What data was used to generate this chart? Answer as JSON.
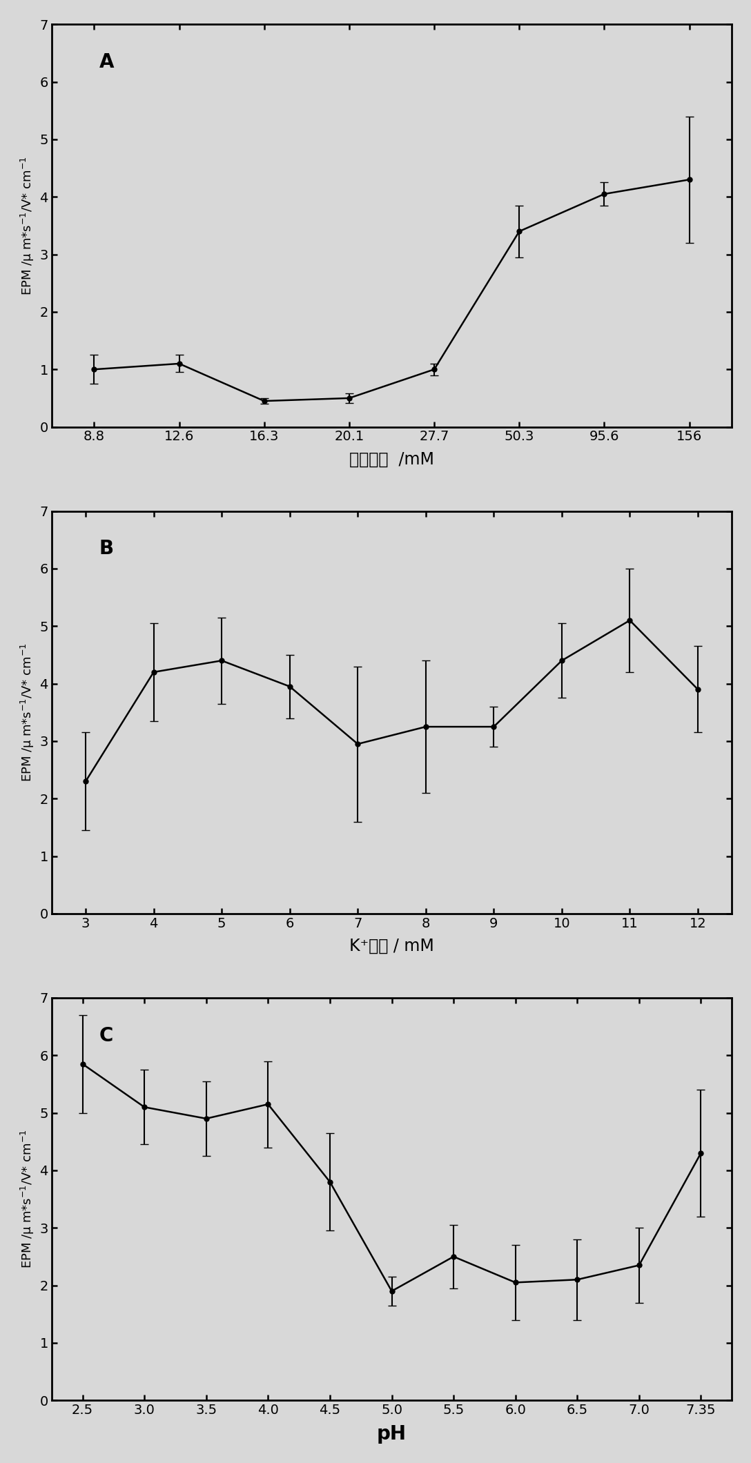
{
  "panel_A": {
    "x_indices": [
      0,
      1,
      2,
      3,
      4,
      5,
      6,
      7
    ],
    "y": [
      1.0,
      1.1,
      0.45,
      0.5,
      1.0,
      3.4,
      4.05,
      4.3
    ],
    "yerr": [
      0.25,
      0.15,
      0.05,
      0.08,
      0.1,
      0.45,
      0.2,
      1.1
    ],
    "xlabel": "离子强度  /mM",
    "ylabel": "EPM /μ m*s⁻¹/V* cm⁻¹",
    "ylim": [
      0,
      7
    ],
    "yticks": [
      0,
      1,
      2,
      3,
      4,
      5,
      6,
      7
    ],
    "label": "A",
    "xtick_labels": [
      "8.8",
      "12.6",
      "16.3",
      "20.1",
      "27.7",
      "50.3",
      "95.6",
      "156"
    ]
  },
  "panel_B": {
    "x_indices": [
      0,
      1,
      2,
      3,
      4,
      5,
      6,
      7,
      8,
      9
    ],
    "y": [
      2.3,
      4.2,
      4.4,
      3.95,
      2.95,
      3.25,
      3.25,
      4.4,
      5.1,
      3.9
    ],
    "yerr": [
      0.85,
      0.85,
      0.75,
      0.55,
      1.35,
      1.15,
      0.35,
      0.65,
      0.9,
      0.75
    ],
    "xlabel": "K⁺强度 / mM",
    "ylabel": "EPM /μ m*s⁻¹/V* cm⁻¹",
    "ylim": [
      0,
      7
    ],
    "yticks": [
      0,
      1,
      2,
      3,
      4,
      5,
      6,
      7
    ],
    "label": "B",
    "xtick_labels": [
      "3",
      "4",
      "5",
      "6",
      "7",
      "8",
      "9",
      "10",
      "11",
      "12"
    ]
  },
  "panel_C": {
    "x_indices": [
      0,
      1,
      2,
      3,
      4,
      5,
      6,
      7,
      8,
      9,
      10
    ],
    "y": [
      5.85,
      5.1,
      4.9,
      5.15,
      3.8,
      1.9,
      2.5,
      2.05,
      2.1,
      2.35,
      4.3
    ],
    "yerr": [
      0.85,
      0.65,
      0.65,
      0.75,
      0.85,
      0.25,
      0.55,
      0.65,
      0.7,
      0.65,
      1.1
    ],
    "xlabel": "pH",
    "ylabel": "EPM /μ m*s⁻¹/V* cm⁻¹",
    "ylim": [
      0,
      7
    ],
    "yticks": [
      0,
      1,
      2,
      3,
      4,
      5,
      6,
      7
    ],
    "label": "C",
    "xtick_labels": [
      "2.5",
      "3.0",
      "3.5",
      "4.0",
      "4.5",
      "5.0",
      "5.5",
      "6.0",
      "6.5",
      "7.0",
      "7.35"
    ]
  },
  "line_color": "#000000",
  "marker": "o",
  "markersize": 5,
  "linewidth": 1.8,
  "capsize": 4,
  "elinewidth": 1.5,
  "tick_fontsize": 14,
  "panel_label_fontsize": 20,
  "xlabel_fontsize": 17,
  "ylabel_fontsize": 13,
  "bg_color": "#d8d8d8"
}
